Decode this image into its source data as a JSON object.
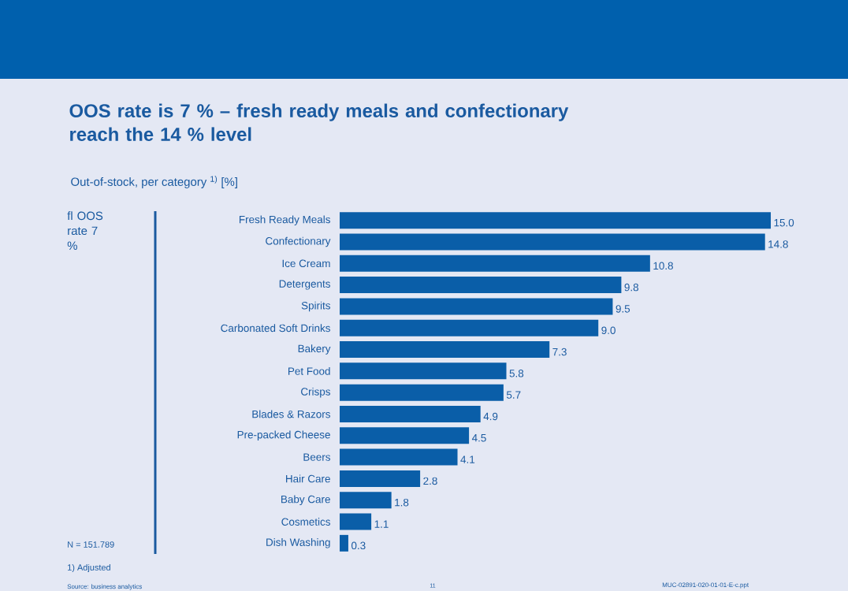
{
  "chart_data": {
    "type": "bar",
    "orientation": "horizontal",
    "title": "OOS rate is 7 % – fresh ready meals and confectionary reach the 14 % level",
    "subtitle": "Out-of-stock, per category $^{1)}$ [%]",
    "categories": [
      "Fresh Ready Meals",
      "Confectionary",
      "Ice Cream",
      "Detergents",
      "Spirits",
      "Carbonated Soft Drinks",
      "Bakery",
      "Pet Food",
      "Crisps",
      "Blades & Razors",
      "Pre-packed Cheese",
      "Beers",
      "Hair Care",
      "Baby Care",
      "Cosmetics",
      "Dish Washing"
    ],
    "values": [
      15.0,
      14.8,
      10.8,
      9.8,
      9.5,
      9.0,
      7.3,
      5.8,
      5.7,
      4.9,
      4.5,
      4.1,
      2.8,
      1.8,
      1.1,
      0.3
    ],
    "color": "#0a5ea8",
    "value_labels": [
      "15.0",
      "14.8",
      "10.8",
      "9.8",
      "9.5",
      "9.0",
      "7.3",
      "5.8",
      "5.7",
      "4.9",
      "4.5",
      "4.1",
      "2.8",
      "1.8",
      "1.1",
      "0.3"
    ],
    "annotations": [
      "fl OOS rate 7 %",
      "N = 151.789",
      "1) Adjusted",
      "Source: business analytics",
      "11",
      "MUC-02891-020-01-01-E-c.ppt"
    ]
  }
}
